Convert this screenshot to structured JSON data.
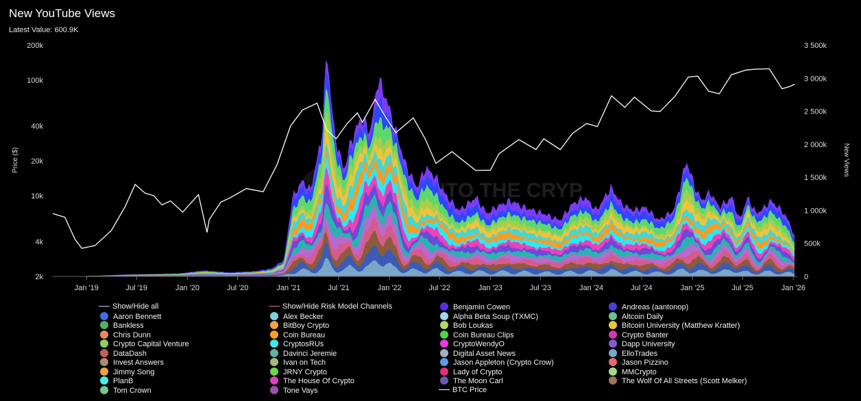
{
  "header": {
    "title": "New YouTube Views",
    "latest_value": "Latest Value: 600.9K"
  },
  "watermark": {
    "text": "INTO THE CRYPTOVERSE"
  },
  "chart_data": {
    "type": "area",
    "title": "New YouTube Views",
    "x_ticks": [
      "Jan '19",
      "Jul '19",
      "Jan '20",
      "Jul '20",
      "Jan '21",
      "Jul '21",
      "Jan '22",
      "Jul '22",
      "Jan '23",
      "Jul '23",
      "Jan '24",
      "Jul '24",
      "Jan '25",
      "Jul '25",
      "Jan '26"
    ],
    "x_range": [
      "2018-09-01",
      "2026-01-15"
    ],
    "left_axis": {
      "label": "Price ($)",
      "scale": "log",
      "range": [
        2000,
        200000
      ],
      "ticks": [
        2000,
        4000,
        10000,
        20000,
        40000,
        100000,
        200000
      ],
      "tick_labels": [
        "2k",
        "4k",
        "10k",
        "20k",
        "40k",
        "100k",
        "200k"
      ]
    },
    "right_axis": {
      "label": "New Views",
      "scale": "linear",
      "range": [
        0,
        3500000
      ],
      "ticks": [
        0,
        500000,
        1000000,
        1500000,
        2000000,
        2500000,
        3000000,
        3500000
      ],
      "tick_labels": [
        "0",
        "500k",
        "1 000k",
        "1 500k",
        "2 000k",
        "2 500k",
        "3 000k",
        "3 500k"
      ]
    },
    "legend_placement": "bottom",
    "latest_value": 600900,
    "btc_price": {
      "name": "BTC Price",
      "color": "#ffffff",
      "points": [
        [
          "2018-09-01",
          7000
        ],
        [
          "2018-10-15",
          6500
        ],
        [
          "2018-11-20",
          4200
        ],
        [
          "2018-12-15",
          3500
        ],
        [
          "2019-02-01",
          3700
        ],
        [
          "2019-04-01",
          5000
        ],
        [
          "2019-05-20",
          8000
        ],
        [
          "2019-06-26",
          12500
        ],
        [
          "2019-08-01",
          10500
        ],
        [
          "2019-09-01",
          10000
        ],
        [
          "2019-10-01",
          8300
        ],
        [
          "2019-11-01",
          9000
        ],
        [
          "2019-12-15",
          7200
        ],
        [
          "2020-02-10",
          10200
        ],
        [
          "2020-03-12",
          4800
        ],
        [
          "2020-03-20",
          6200
        ],
        [
          "2020-05-01",
          8800
        ],
        [
          "2020-06-01",
          9500
        ],
        [
          "2020-08-01",
          11500
        ],
        [
          "2020-10-01",
          10800
        ],
        [
          "2020-11-20",
          18500
        ],
        [
          "2021-01-08",
          40000
        ],
        [
          "2021-02-20",
          55000
        ],
        [
          "2021-04-14",
          63000
        ],
        [
          "2021-05-19",
          37000
        ],
        [
          "2021-06-22",
          31000
        ],
        [
          "2021-08-01",
          42000
        ],
        [
          "2021-09-07",
          52000
        ],
        [
          "2021-09-25",
          43000
        ],
        [
          "2021-11-10",
          68000
        ],
        [
          "2021-12-20",
          47000
        ],
        [
          "2022-01-24",
          35000
        ],
        [
          "2022-03-28",
          47000
        ],
        [
          "2022-05-10",
          31000
        ],
        [
          "2022-06-18",
          19000
        ],
        [
          "2022-08-15",
          24000
        ],
        [
          "2022-11-09",
          16500
        ],
        [
          "2023-01-01",
          16600
        ],
        [
          "2023-02-01",
          23000
        ],
        [
          "2023-04-14",
          30500
        ],
        [
          "2023-06-15",
          25000
        ],
        [
          "2023-07-13",
          31000
        ],
        [
          "2023-09-11",
          25000
        ],
        [
          "2023-10-25",
          34500
        ],
        [
          "2023-12-15",
          42000
        ],
        [
          "2024-01-23",
          39500
        ],
        [
          "2024-03-14",
          73000
        ],
        [
          "2024-05-01",
          58000
        ],
        [
          "2024-06-05",
          71000
        ],
        [
          "2024-08-05",
          54000
        ],
        [
          "2024-09-06",
          53500
        ],
        [
          "2024-10-29",
          72000
        ],
        [
          "2024-12-17",
          106000
        ],
        [
          "2025-01-20",
          108000
        ],
        [
          "2025-02-28",
          80000
        ],
        [
          "2025-04-08",
          76000
        ],
        [
          "2025-05-22",
          111000
        ],
        [
          "2025-07-14",
          122000
        ],
        [
          "2025-08-14",
          124000
        ],
        [
          "2025-10-06",
          125000
        ],
        [
          "2025-11-21",
          84000
        ],
        [
          "2025-12-20",
          88000
        ],
        [
          "2026-01-05",
          92000
        ]
      ]
    },
    "views_total": {
      "name": "New Views (stacked total)",
      "points": [
        [
          "2018-09-01",
          0
        ],
        [
          "2019-02-01",
          10000
        ],
        [
          "2019-06-01",
          30000
        ],
        [
          "2019-12-01",
          45000
        ],
        [
          "2020-03-01",
          90000
        ],
        [
          "2020-06-01",
          60000
        ],
        [
          "2020-09-01",
          80000
        ],
        [
          "2020-11-01",
          120000
        ],
        [
          "2020-12-15",
          250000
        ],
        [
          "2021-01-15",
          1200000
        ],
        [
          "2021-02-20",
          1450000
        ],
        [
          "2021-03-20",
          1300000
        ],
        [
          "2021-05-01",
          2100000
        ],
        [
          "2021-05-19",
          3440000
        ],
        [
          "2021-06-15",
          2200000
        ],
        [
          "2021-07-20",
          1600000
        ],
        [
          "2021-08-15",
          2050000
        ],
        [
          "2021-09-20",
          2400000
        ],
        [
          "2021-10-25",
          2200000
        ],
        [
          "2021-11-20",
          3000000
        ],
        [
          "2021-12-20",
          2700000
        ],
        [
          "2022-01-24",
          2200000
        ],
        [
          "2022-02-28",
          1700000
        ],
        [
          "2022-04-10",
          1350000
        ],
        [
          "2022-05-12",
          1650000
        ],
        [
          "2022-06-18",
          1500000
        ],
        [
          "2022-07-20",
          1250000
        ],
        [
          "2022-09-10",
          1000000
        ],
        [
          "2022-11-10",
          1200000
        ],
        [
          "2022-12-20",
          950000
        ],
        [
          "2023-01-20",
          1050000
        ],
        [
          "2023-03-15",
          1150000
        ],
        [
          "2023-05-01",
          1050000
        ],
        [
          "2023-07-15",
          950000
        ],
        [
          "2023-09-10",
          850000
        ],
        [
          "2023-10-25",
          1100000
        ],
        [
          "2023-12-10",
          1200000
        ],
        [
          "2024-01-20",
          1000000
        ],
        [
          "2024-03-12",
          1350000
        ],
        [
          "2024-04-20",
          1100000
        ],
        [
          "2024-06-01",
          1000000
        ],
        [
          "2024-07-15",
          1050000
        ],
        [
          "2024-09-01",
          850000
        ],
        [
          "2024-10-25",
          1000000
        ],
        [
          "2024-12-10",
          1750000
        ],
        [
          "2025-01-15",
          1300000
        ],
        [
          "2025-02-05",
          1150000
        ],
        [
          "2025-03-05",
          1280000
        ],
        [
          "2025-04-08",
          1050000
        ],
        [
          "2025-05-25",
          1200000
        ],
        [
          "2025-06-20",
          850000
        ],
        [
          "2025-07-20",
          1200000
        ],
        [
          "2025-08-20",
          950000
        ],
        [
          "2025-09-20",
          1050000
        ],
        [
          "2025-10-10",
          1150000
        ],
        [
          "2025-11-21",
          1000000
        ],
        [
          "2025-12-20",
          800000
        ],
        [
          "2026-01-05",
          600900
        ]
      ]
    },
    "band_colors": [
      "#7a3cf5",
      "#2d47ff",
      "#5bd86e",
      "#a5ce4f",
      "#f0c33a",
      "#45d6d4",
      "#ff9a1f",
      "#27e9f7",
      "#f040b8",
      "#6a4ad8",
      "#26b5ae",
      "#b76bd1",
      "#d65b8a",
      "#8c5a3c",
      "#3b5bb5",
      "#7aa6c9"
    ],
    "series_legend": [
      {
        "name": "Show/Hide all",
        "color": "#bfc9ff",
        "kind": "line"
      },
      {
        "name": "Show/Hide Risk Model Channels",
        "color": "#e57373",
        "kind": "line"
      },
      {
        "name": "Benjamin Cowen",
        "color": "#5a2ee6",
        "kind": "dot"
      },
      {
        "name": "Andreas (aantonop)",
        "color": "#4b3fd9",
        "kind": "dot"
      },
      {
        "name": "Aaron Bennett",
        "color": "#3f6fe0",
        "kind": "dot"
      },
      {
        "name": "Alex Becker",
        "color": "#7fcfe0",
        "kind": "dot"
      },
      {
        "name": "Alpha Beta Soup (TXMC)",
        "color": "#9fd6e8",
        "kind": "dot"
      },
      {
        "name": "Altcoin Daily",
        "color": "#6fbf8f",
        "kind": "dot"
      },
      {
        "name": "Bankless",
        "color": "#4fb06a",
        "kind": "dot"
      },
      {
        "name": "BitBoy Crypto",
        "color": "#f0a24a",
        "kind": "dot"
      },
      {
        "name": "Bob Loukas",
        "color": "#b4d86a",
        "kind": "dot"
      },
      {
        "name": "Bitcoin University (Matthew Kratter)",
        "color": "#e8c83c",
        "kind": "dot"
      },
      {
        "name": "Chris Dunn",
        "color": "#e88a5a",
        "kind": "dot"
      },
      {
        "name": "Coin Bureau",
        "color": "#f7a21e",
        "kind": "dot"
      },
      {
        "name": "Coin Bureau Clips",
        "color": "#4fd24a",
        "kind": "dot"
      },
      {
        "name": "Crypto Banter",
        "color": "#d03ab0",
        "kind": "dot"
      },
      {
        "name": "Crypto Capital Venture",
        "color": "#8fcf6a",
        "kind": "dot"
      },
      {
        "name": "CryptosRUs",
        "color": "#3ee8f2",
        "kind": "dot"
      },
      {
        "name": "CryptoWendyO",
        "color": "#e83ad8",
        "kind": "dot"
      },
      {
        "name": "Dapp University",
        "color": "#8a5ad0",
        "kind": "dot"
      },
      {
        "name": "DataDash",
        "color": "#c0605a",
        "kind": "dot"
      },
      {
        "name": "Davinci Jeremie",
        "color": "#5fb0a6",
        "kind": "dot"
      },
      {
        "name": "Digital Asset News",
        "color": "#a0b0c0",
        "kind": "dot"
      },
      {
        "name": "ElloTrades",
        "color": "#7aa6c9",
        "kind": "dot"
      },
      {
        "name": "Invest Answers",
        "color": "#b08a70",
        "kind": "dot"
      },
      {
        "name": "Ivan on Tech",
        "color": "#a8b87a",
        "kind": "dot"
      },
      {
        "name": "Jason Appleton (Crypto Crow)",
        "color": "#5a9ae8",
        "kind": "dot"
      },
      {
        "name": "Jason Pizzino",
        "color": "#e86a6a",
        "kind": "dot"
      },
      {
        "name": "Jimmy Song",
        "color": "#f0a040",
        "kind": "dot"
      },
      {
        "name": "JRNY Crypto",
        "color": "#6ad84a",
        "kind": "dot"
      },
      {
        "name": "Lady of Crypto",
        "color": "#e0307a",
        "kind": "dot"
      },
      {
        "name": "MMCrypto",
        "color": "#a0d890",
        "kind": "dot"
      },
      {
        "name": "PlanB",
        "color": "#40f0f0",
        "kind": "dot"
      },
      {
        "name": "The House Of Crypto",
        "color": "#e040c0",
        "kind": "dot"
      },
      {
        "name": "The Moon Carl",
        "color": "#6a5ab0",
        "kind": "dot"
      },
      {
        "name": "The Wolf Of All Streets (Scott Melker)",
        "color": "#a07060",
        "kind": "dot"
      },
      {
        "name": "Tom Crown",
        "color": "#70c890",
        "kind": "dot"
      },
      {
        "name": "Tone Vays",
        "color": "#a050b0",
        "kind": "dot"
      },
      {
        "name": "BTC Price",
        "color": "#ffffff",
        "kind": "line"
      }
    ]
  }
}
